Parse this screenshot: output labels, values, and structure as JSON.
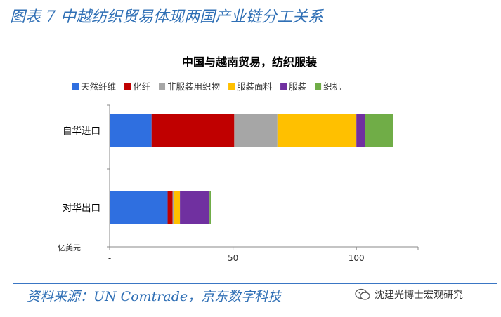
{
  "figure_title": "图表 7 中越纺织贸易体现两国产业链分工关系",
  "source_text": "资料来源：UN Comtrade，京东数字科技",
  "watermark_text": "沈建光博士宏观研究",
  "chart_data": {
    "type": "bar",
    "orientation": "horizontal",
    "stacked": true,
    "title": "中国与越南贸易，纺织服装",
    "unit_label": "亿美元",
    "categories": [
      "自华进口",
      "对华出口"
    ],
    "series": [
      {
        "name": "天然纤维",
        "color": "#2f6fe0",
        "values": [
          17,
          23.5
        ]
      },
      {
        "name": "化纤",
        "color": "#c00000",
        "values": [
          33.5,
          2
        ]
      },
      {
        "name": "非服装用织物",
        "color": "#a6a6a6",
        "values": [
          17.5,
          0.5
        ]
      },
      {
        "name": "服装面料",
        "color": "#ffc000",
        "values": [
          32,
          2.5
        ]
      },
      {
        "name": "服装",
        "color": "#7030a0",
        "values": [
          3.5,
          12
        ]
      },
      {
        "name": "织机",
        "color": "#70ad47",
        "values": [
          11.5,
          0.5
        ]
      }
    ],
    "xlim": [
      0,
      125
    ],
    "x_ticks": [
      {
        "value": 0,
        "label": "-"
      },
      {
        "value": 50,
        "label": "50"
      },
      {
        "value": 100,
        "label": "100"
      }
    ],
    "grid": false,
    "legend_position": "top"
  }
}
